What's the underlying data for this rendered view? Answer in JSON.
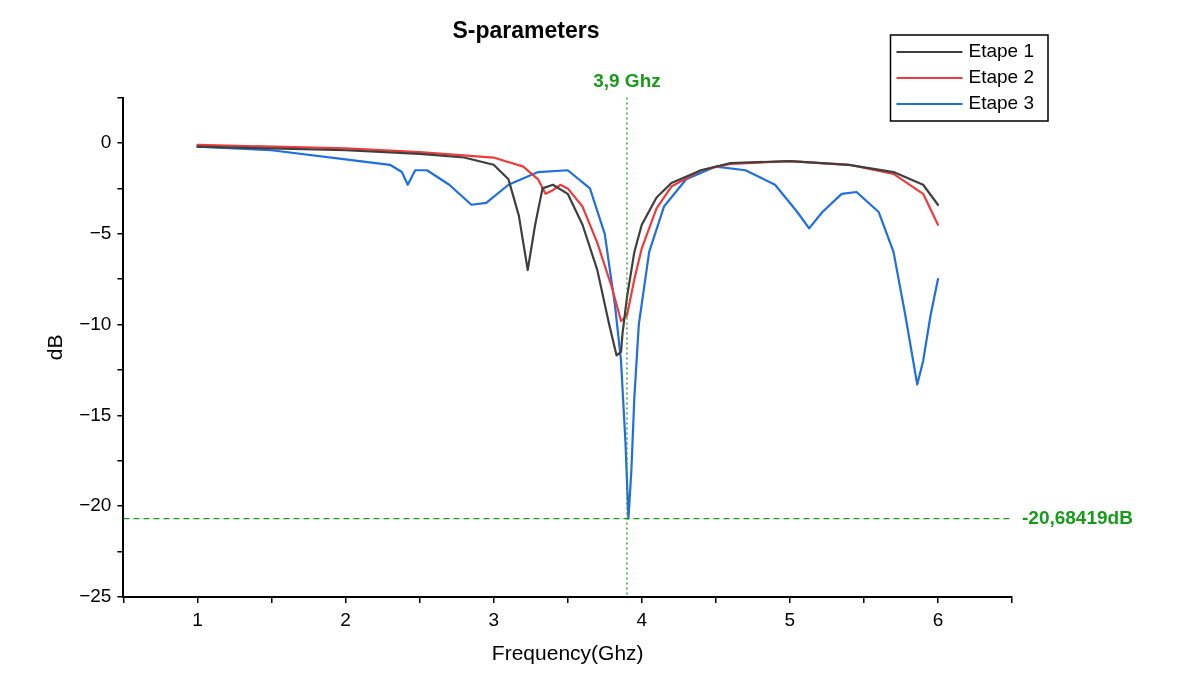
{
  "chart_data": {
    "type": "line",
    "title": "S-parameters",
    "xlabel": "Frequency(Ghz)",
    "ylabel": "dB",
    "xlim": [
      0.5,
      6.5
    ],
    "ylim": [
      -25,
      2.5
    ],
    "xticks": [
      {
        "value": 0.5,
        "label": null
      },
      1,
      {
        "value": 1.5,
        "label": null
      },
      2,
      {
        "value": 2.5,
        "label": null
      },
      3,
      {
        "value": 3.5,
        "label": null
      },
      4,
      {
        "value": 4.5,
        "label": null
      },
      5,
      {
        "value": 5.5,
        "label": null
      },
      6,
      {
        "value": 6.5,
        "label": null
      }
    ],
    "yticks": [
      -25,
      {
        "value": -22.5,
        "label": null
      },
      -20,
      {
        "value": -17.5,
        "label": null
      },
      -15,
      {
        "value": -12.5,
        "label": null
      },
      -10,
      {
        "value": -7.5,
        "label": null
      },
      -5,
      {
        "value": -2.5,
        "label": null
      },
      0,
      {
        "value": 2.5,
        "label": null
      }
    ],
    "grid": false,
    "legend": "top right",
    "marker": "none",
    "line_style": "solid",
    "series": [
      {
        "name": "Etape 1",
        "color": "#3f3f3f",
        "x": [
          1,
          1.5,
          2,
          2.5,
          2.8,
          3.0,
          3.1,
          3.17,
          3.23,
          3.28,
          3.33,
          3.4,
          3.5,
          3.6,
          3.7,
          3.78,
          3.83,
          3.86,
          3.87,
          3.9,
          3.95,
          4.0,
          4.1,
          4.2,
          4.4,
          4.6,
          5.0,
          5.4,
          5.7,
          5.9,
          6.0
        ],
        "values": [
          -0.2,
          -0.3,
          -0.4,
          -0.6,
          -0.8,
          -1.2,
          -2,
          -4,
          -7.0,
          -4.5,
          -2.5,
          -2.3,
          -2.8,
          -4.5,
          -7,
          -10,
          -11.7,
          -11.5,
          -10.5,
          -8.5,
          -6,
          -4.5,
          -3,
          -2.2,
          -1.5,
          -1.1,
          -1.0,
          -1.2,
          -1.6,
          -2.3,
          -3.4
        ]
      },
      {
        "name": "Etape 2",
        "color": "#ee3b3b",
        "x": [
          1,
          2,
          2.5,
          3,
          3.2,
          3.3,
          3.35,
          3.4,
          3.45,
          3.5,
          3.6,
          3.7,
          3.8,
          3.86,
          3.9,
          3.95,
          4.0,
          4.1,
          4.2,
          4.4,
          4.6,
          5.0,
          5.4,
          5.7,
          5.9,
          6.0
        ],
        "values": [
          -0.1,
          -0.3,
          -0.5,
          -0.8,
          -1.3,
          -2,
          -2.8,
          -2.6,
          -2.3,
          -2.5,
          -3.5,
          -5.5,
          -8,
          -9.8,
          -9.5,
          -7.5,
          -5.8,
          -3.6,
          -2.4,
          -1.5,
          -1.15,
          -1.0,
          -1.2,
          -1.7,
          -2.8,
          -4.5
        ]
      },
      {
        "name": "Etape 3",
        "color": "#1f6fe0",
        "x": [
          1,
          1.5,
          2,
          2.3,
          2.38,
          2.42,
          2.47,
          2.55,
          2.7,
          2.85,
          2.95,
          3.1,
          3.3,
          3.5,
          3.65,
          3.75,
          3.82,
          3.86,
          3.89,
          3.91,
          3.93,
          3.95,
          3.98,
          4.05,
          4.15,
          4.3,
          4.5,
          4.7,
          4.9,
          5.05,
          5.13,
          5.22,
          5.35,
          5.45,
          5.6,
          5.7,
          5.78,
          5.86,
          5.9,
          5.95,
          6.0
        ],
        "values": [
          -0.2,
          -0.4,
          -0.9,
          -1.2,
          -1.6,
          -2.3,
          -1.5,
          -1.5,
          -2.3,
          -3.4,
          -3.3,
          -2.3,
          -1.6,
          -1.5,
          -2.5,
          -5,
          -9,
          -12,
          -16.5,
          -20.68,
          -18,
          -14,
          -10,
          -6,
          -3.5,
          -2,
          -1.3,
          -1.5,
          -2.3,
          -3.8,
          -4.7,
          -3.8,
          -2.8,
          -2.7,
          -3.8,
          -6,
          -9.5,
          -13.3,
          -12,
          -9.5,
          -7.5
        ]
      }
    ],
    "ref_lines": [
      {
        "axis": "x",
        "value": 3.9,
        "label": "3,9 Ghz",
        "color": "#1a9a1a",
        "line_style": "dotted"
      },
      {
        "axis": "y",
        "value": -20.68419,
        "label": "-20,68419dB",
        "color": "#1a9a1a",
        "line_style": "dashed"
      }
    ]
  }
}
